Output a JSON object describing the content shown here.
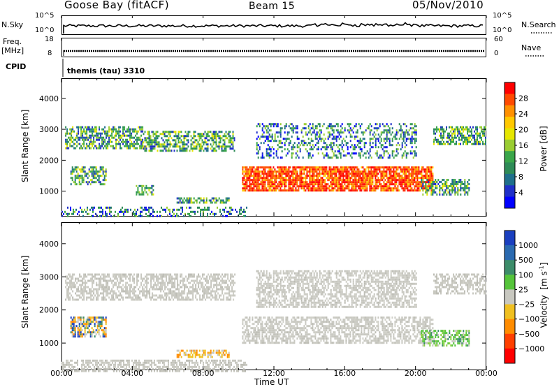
{
  "header": {
    "station": "Goose Bay (fitACF)",
    "beam": "Beam 15",
    "date": "05/Nov/2010"
  },
  "top_panels": {
    "nsky_label": "N.Sky",
    "nsearch_label": "N.Search",
    "noise_ticks_left": [
      "10^5",
      "10^0"
    ],
    "noise_ticks_right": [
      "10^5",
      "10^0"
    ],
    "freq_label_line1": "Freq.",
    "freq_label_line2": "[MHz]",
    "freq_ticks": [
      "18",
      "8"
    ],
    "nave_label": "Nave",
    "nave_ticks": [
      "60",
      "0"
    ],
    "cpid_label": "CPID",
    "cpid_value": "themis (tau) 3310"
  },
  "chart_data": [
    {
      "type": "heatmap",
      "title": "",
      "xlabel": "Time UT",
      "ylabel": "Slant Range [km]",
      "x_ticks": [
        "00:00",
        "04:00",
        "08:00",
        "12:00",
        "16:00",
        "20:00",
        "00:00"
      ],
      "x_range_hours": [
        0,
        24
      ],
      "y_ticks": [
        1000,
        2000,
        3000,
        4000
      ],
      "ylim": [
        180,
        4650
      ],
      "colorbar": {
        "label": "Power [dB]",
        "ticks": [
          "28",
          "24",
          "20",
          "16",
          "12",
          "8",
          "4"
        ],
        "colors": [
          "#ff0000",
          "#ff4a00",
          "#ff9000",
          "#ffc800",
          "#e6e600",
          "#9acd32",
          "#3aa64a",
          "#2e8b57",
          "#1f6f8b",
          "#2030c8",
          "#0000ff"
        ]
      },
      "regions": [
        {
          "t": [
            0.2,
            4.6
          ],
          "r": [
            2400,
            3100
          ],
          "level": "medium"
        },
        {
          "t": [
            4.6,
            9.8
          ],
          "r": [
            2300,
            2950
          ],
          "level": "medium"
        },
        {
          "t": [
            10.2,
            21.0
          ],
          "r": [
            1000,
            1800
          ],
          "level": "high"
        },
        {
          "t": [
            11.0,
            20.0
          ],
          "r": [
            2100,
            3200
          ],
          "level": "low"
        },
        {
          "t": [
            21.0,
            24.0
          ],
          "r": [
            2500,
            3100
          ],
          "level": "medium"
        },
        {
          "t": [
            20.3,
            23.0
          ],
          "r": [
            900,
            1400
          ],
          "level": "medium"
        },
        {
          "t": [
            0.5,
            2.5
          ],
          "r": [
            1200,
            1800
          ],
          "level": "medium"
        },
        {
          "t": [
            4.2,
            5.2
          ],
          "r": [
            900,
            1200
          ],
          "level": "medium"
        },
        {
          "t": [
            6.5,
            9.5
          ],
          "r": [
            600,
            800
          ],
          "level": "medium"
        },
        {
          "t": [
            0.0,
            10.5
          ],
          "r": [
            180,
            500
          ],
          "level": "low"
        }
      ]
    },
    {
      "type": "heatmap",
      "title": "",
      "xlabel": "Time UT",
      "ylabel": "Slant Range [km]",
      "x_ticks": [
        "00:00",
        "04:00",
        "08:00",
        "12:00",
        "16:00",
        "20:00",
        "00:00"
      ],
      "x_range_hours": [
        0,
        24
      ],
      "y_ticks": [
        1000,
        2000,
        3000,
        4000
      ],
      "ylim": [
        180,
        4650
      ],
      "colorbar": {
        "label_main": "Velocity",
        "label_unit": "[m s",
        "label_exp": "-1",
        "label_close": "]",
        "ticks": [
          "1000",
          "500",
          "100",
          "25",
          "−25",
          "−100",
          "−500",
          "−1000"
        ],
        "colors": [
          "#1a3fbf",
          "#2a6ab0",
          "#3c8c6a",
          "#55c43a",
          "#c8c8c0",
          "#f0c020",
          "#ff8c00",
          "#ff4000",
          "#ff0000"
        ]
      },
      "regions": [
        {
          "t": [
            0.2,
            9.8
          ],
          "r": [
            2300,
            3100
          ],
          "level": "ground"
        },
        {
          "t": [
            10.2,
            21.0
          ],
          "r": [
            1000,
            1800
          ],
          "level": "ground"
        },
        {
          "t": [
            11.0,
            20.0
          ],
          "r": [
            2100,
            3200
          ],
          "level": "ground"
        },
        {
          "t": [
            21.0,
            24.0
          ],
          "r": [
            2500,
            3100
          ],
          "level": "ground"
        },
        {
          "t": [
            20.3,
            23.0
          ],
          "r": [
            900,
            1400
          ],
          "level": "positive"
        },
        {
          "t": [
            0.5,
            2.5
          ],
          "r": [
            1200,
            1800
          ],
          "level": "mixed"
        },
        {
          "t": [
            6.5,
            9.5
          ],
          "r": [
            600,
            800
          ],
          "level": "negative"
        },
        {
          "t": [
            0.0,
            10.5
          ],
          "r": [
            180,
            500
          ],
          "level": "ground"
        }
      ]
    }
  ]
}
